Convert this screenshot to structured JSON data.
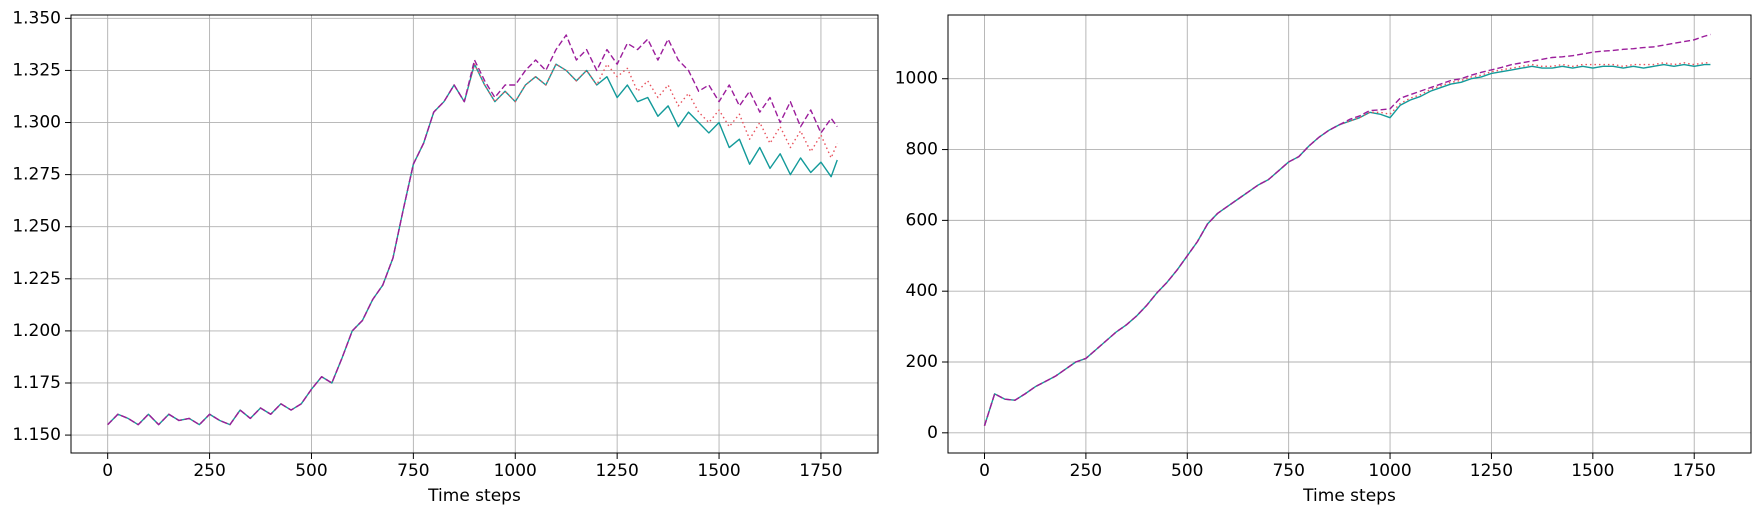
{
  "chart_data": [
    {
      "type": "line",
      "x_label": "Time steps",
      "grid": true,
      "xlim": [
        -90,
        1890
      ],
      "ylim": [
        1.1414,
        1.3516
      ],
      "xticks": [
        0,
        250,
        500,
        750,
        1000,
        1250,
        1500,
        1750
      ],
      "yticks": [
        {
          "value": 1.15,
          "label": "1.150"
        },
        {
          "value": 1.175,
          "label": "1.175"
        },
        {
          "value": 1.2,
          "label": "1.200"
        },
        {
          "value": 1.225,
          "label": "1.225"
        },
        {
          "value": 1.25,
          "label": "1.250"
        },
        {
          "value": 1.275,
          "label": "1.275"
        },
        {
          "value": 1.3,
          "label": "1.300"
        },
        {
          "value": 1.325,
          "label": "1.325"
        },
        {
          "value": 1.35,
          "label": "1.350"
        }
      ],
      "x": [
        0,
        25,
        50,
        75,
        100,
        125,
        150,
        175,
        200,
        225,
        250,
        275,
        300,
        325,
        350,
        375,
        400,
        425,
        450,
        475,
        500,
        525,
        550,
        575,
        600,
        625,
        650,
        675,
        700,
        725,
        750,
        775,
        800,
        825,
        850,
        875,
        900,
        925,
        950,
        975,
        1000,
        1025,
        1050,
        1075,
        1100,
        1125,
        1150,
        1175,
        1200,
        1225,
        1250,
        1275,
        1300,
        1325,
        1350,
        1375,
        1400,
        1425,
        1450,
        1475,
        1500,
        1525,
        1550,
        1575,
        1600,
        1625,
        1650,
        1675,
        1700,
        1725,
        1750,
        1775,
        1790
      ],
      "series": [
        {
          "color": "#139a9a",
          "style": "solid",
          "values": [
            1.155,
            1.16,
            1.158,
            1.155,
            1.16,
            1.155,
            1.16,
            1.157,
            1.158,
            1.155,
            1.16,
            1.157,
            1.155,
            1.162,
            1.158,
            1.163,
            1.16,
            1.165,
            1.162,
            1.165,
            1.172,
            1.178,
            1.175,
            1.187,
            1.2,
            1.205,
            1.215,
            1.222,
            1.235,
            1.258,
            1.28,
            1.29,
            1.305,
            1.31,
            1.318,
            1.31,
            1.328,
            1.318,
            1.31,
            1.315,
            1.31,
            1.318,
            1.322,
            1.318,
            1.328,
            1.325,
            1.32,
            1.325,
            1.318,
            1.322,
            1.312,
            1.318,
            1.31,
            1.312,
            1.303,
            1.308,
            1.298,
            1.305,
            1.3,
            1.295,
            1.3,
            1.288,
            1.292,
            1.28,
            1.288,
            1.278,
            1.285,
            1.275,
            1.283,
            1.276,
            1.281,
            1.274,
            1.282
          ]
        },
        {
          "color": "#e8525d",
          "style": "dotted",
          "values": [
            1.155,
            1.16,
            1.158,
            1.155,
            1.16,
            1.155,
            1.16,
            1.157,
            1.158,
            1.155,
            1.16,
            1.157,
            1.155,
            1.162,
            1.158,
            1.163,
            1.16,
            1.165,
            1.162,
            1.165,
            1.172,
            1.178,
            1.175,
            1.187,
            1.2,
            1.205,
            1.215,
            1.222,
            1.235,
            1.258,
            1.28,
            1.29,
            1.305,
            1.31,
            1.318,
            1.31,
            1.328,
            1.318,
            1.31,
            1.315,
            1.31,
            1.318,
            1.322,
            1.318,
            1.328,
            1.325,
            1.32,
            1.325,
            1.318,
            1.328,
            1.322,
            1.326,
            1.315,
            1.32,
            1.312,
            1.318,
            1.308,
            1.314,
            1.305,
            1.3,
            1.306,
            1.298,
            1.304,
            1.292,
            1.3,
            1.29,
            1.298,
            1.288,
            1.296,
            1.286,
            1.294,
            1.283,
            1.29
          ]
        },
        {
          "color": "#9b1d9b",
          "style": "dashed",
          "values": [
            1.155,
            1.16,
            1.158,
            1.155,
            1.16,
            1.155,
            1.16,
            1.157,
            1.158,
            1.155,
            1.16,
            1.157,
            1.155,
            1.162,
            1.158,
            1.163,
            1.16,
            1.165,
            1.162,
            1.165,
            1.172,
            1.178,
            1.175,
            1.187,
            1.2,
            1.205,
            1.215,
            1.222,
            1.235,
            1.258,
            1.28,
            1.29,
            1.305,
            1.31,
            1.318,
            1.31,
            1.33,
            1.32,
            1.312,
            1.318,
            1.318,
            1.325,
            1.33,
            1.325,
            1.335,
            1.342,
            1.33,
            1.335,
            1.325,
            1.335,
            1.328,
            1.338,
            1.335,
            1.34,
            1.33,
            1.34,
            1.33,
            1.325,
            1.315,
            1.318,
            1.31,
            1.318,
            1.308,
            1.315,
            1.305,
            1.312,
            1.3,
            1.31,
            1.298,
            1.306,
            1.295,
            1.302,
            1.298
          ]
        }
      ]
    },
    {
      "type": "line",
      "x_label": "Time steps",
      "grid": true,
      "xlim": [
        -90,
        1890
      ],
      "ylim": [
        -57,
        1180
      ],
      "xticks": [
        0,
        250,
        500,
        750,
        1000,
        1250,
        1500,
        1750
      ],
      "yticks": [
        0,
        200,
        400,
        600,
        800,
        1000
      ],
      "x": [
        0,
        25,
        50,
        75,
        100,
        125,
        150,
        175,
        200,
        225,
        250,
        275,
        300,
        325,
        350,
        375,
        400,
        425,
        450,
        475,
        500,
        525,
        550,
        575,
        600,
        625,
        650,
        675,
        700,
        725,
        750,
        775,
        800,
        825,
        850,
        875,
        900,
        925,
        950,
        975,
        1000,
        1025,
        1050,
        1075,
        1100,
        1125,
        1150,
        1175,
        1200,
        1225,
        1250,
        1275,
        1300,
        1325,
        1350,
        1375,
        1400,
        1425,
        1450,
        1475,
        1500,
        1525,
        1550,
        1575,
        1600,
        1625,
        1650,
        1675,
        1700,
        1725,
        1750,
        1775,
        1790
      ],
      "series": [
        {
          "color": "#139a9a",
          "style": "solid",
          "values": [
            20,
            110,
            95,
            92,
            110,
            130,
            145,
            160,
            180,
            200,
            210,
            235,
            260,
            285,
            305,
            330,
            360,
            395,
            425,
            460,
            500,
            540,
            590,
            620,
            640,
            660,
            680,
            700,
            715,
            740,
            765,
            780,
            810,
            835,
            855,
            870,
            880,
            890,
            905,
            900,
            890,
            925,
            940,
            950,
            965,
            975,
            985,
            990,
            1000,
            1005,
            1015,
            1020,
            1025,
            1030,
            1035,
            1030,
            1030,
            1035,
            1030,
            1035,
            1030,
            1035,
            1035,
            1030,
            1035,
            1030,
            1035,
            1040,
            1035,
            1040,
            1035,
            1040,
            1040
          ]
        },
        {
          "color": "#e8525d",
          "style": "dotted",
          "values": [
            20,
            110,
            95,
            92,
            110,
            130,
            145,
            160,
            180,
            200,
            210,
            235,
            260,
            285,
            305,
            330,
            360,
            395,
            425,
            460,
            500,
            540,
            590,
            620,
            640,
            660,
            680,
            700,
            715,
            740,
            765,
            780,
            810,
            835,
            855,
            870,
            880,
            890,
            905,
            905,
            900,
            930,
            945,
            955,
            970,
            980,
            990,
            995,
            1005,
            1010,
            1020,
            1025,
            1030,
            1035,
            1040,
            1035,
            1035,
            1040,
            1035,
            1040,
            1040,
            1040,
            1040,
            1035,
            1040,
            1040,
            1040,
            1045,
            1040,
            1045,
            1040,
            1045,
            1045
          ]
        },
        {
          "color": "#9b1d9b",
          "style": "dashed",
          "values": [
            20,
            110,
            95,
            92,
            110,
            130,
            145,
            160,
            180,
            200,
            210,
            235,
            260,
            285,
            305,
            330,
            360,
            395,
            425,
            460,
            500,
            540,
            590,
            620,
            640,
            660,
            680,
            700,
            715,
            740,
            765,
            780,
            810,
            835,
            855,
            870,
            885,
            895,
            910,
            912,
            915,
            945,
            955,
            965,
            975,
            985,
            995,
            1000,
            1010,
            1018,
            1025,
            1032,
            1040,
            1045,
            1050,
            1055,
            1060,
            1062,
            1065,
            1070,
            1075,
            1078,
            1080,
            1083,
            1085,
            1088,
            1090,
            1095,
            1100,
            1105,
            1110,
            1120,
            1125
          ]
        }
      ]
    }
  ]
}
